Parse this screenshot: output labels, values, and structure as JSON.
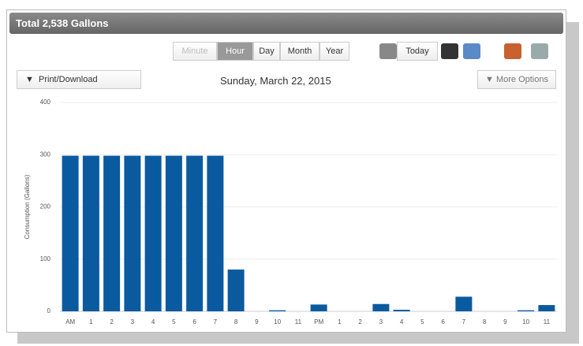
{
  "header": {
    "title": "Total 2,538 Gallons"
  },
  "toolbar": {
    "period_buttons": [
      "Minute",
      "Hour",
      "Day",
      "Month",
      "Year"
    ],
    "disabled_index": 0,
    "active_index": 1,
    "today_button": "Today"
  },
  "print_button": "Print/Download",
  "date": "Sunday, March 22, 2015",
  "more_options": "More Options",
  "chart_data": {
    "type": "bar",
    "y_label": "Consumption (Gallons)",
    "categories": [
      "AM",
      "1",
      "2",
      "3",
      "4",
      "5",
      "6",
      "7",
      "8",
      "9",
      "10",
      "11",
      "PM",
      "1",
      "2",
      "3",
      "4",
      "5",
      "6",
      "7",
      "8",
      "9",
      "10",
      "11"
    ],
    "values": [
      298,
      298,
      298,
      298,
      298,
      298,
      298,
      298,
      80,
      0,
      2,
      0,
      13,
      0,
      0,
      14,
      3,
      0,
      0,
      28,
      0,
      0,
      2,
      12
    ],
    "color": "#0a5aa0",
    "ylim": [
      0,
      400
    ],
    "yticks": [
      0,
      100,
      200,
      300,
      400
    ],
    "grid": true
  }
}
